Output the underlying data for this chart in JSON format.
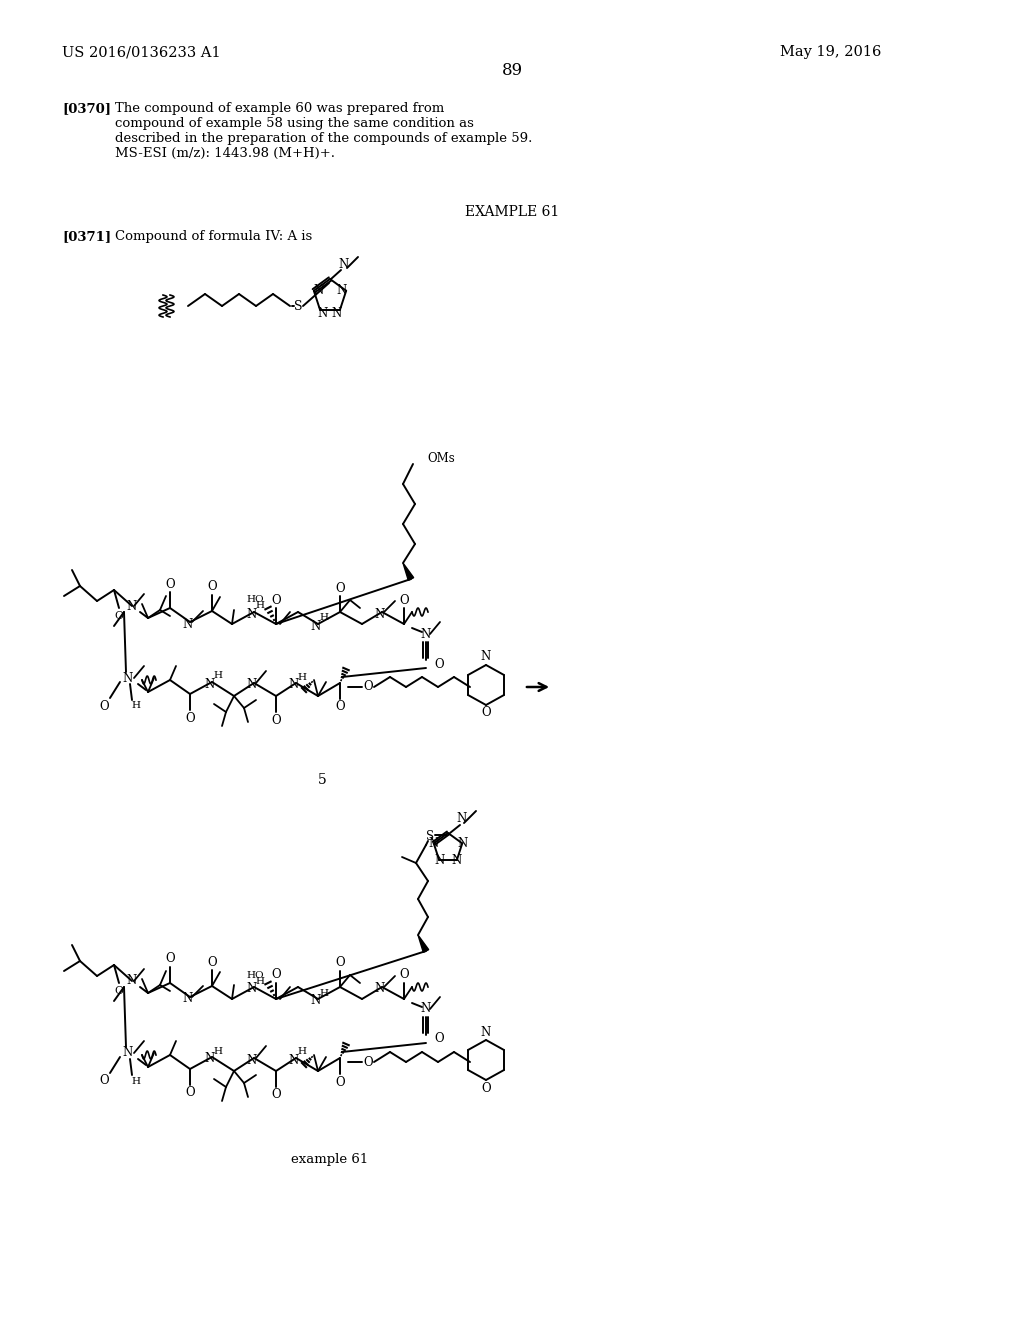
{
  "background_color": "#ffffff",
  "header_left": "US 2016/0136233 A1",
  "header_right": "May 19, 2016",
  "page_number": "89",
  "para_0370_label": "[0370]",
  "para_0370_text": "The compound of example 60 was prepared from\ncompound of example 58 using the same condition as\ndescribed in the preparation of the compounds of example 59.\nMS-ESI (m/z): 1443.98 (M+H)+.",
  "example_61_title": "EXAMPLE 61",
  "para_0371_label": "[0371]",
  "para_0371_text": "Compound of formula IV: A is",
  "label_5": "5",
  "label_example_61": "example 61"
}
